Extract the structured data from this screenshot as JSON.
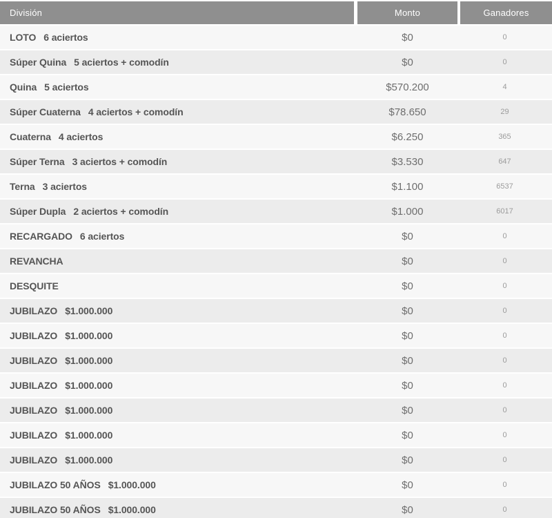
{
  "table": {
    "columns": [
      "División",
      "Monto",
      "Ganadores"
    ],
    "rows": [
      {
        "division": "LOTO",
        "detail": "6 aciertos",
        "monto": "$0",
        "ganadores": "0"
      },
      {
        "division": "Súper Quina",
        "detail": "5 aciertos + comodín",
        "monto": "$0",
        "ganadores": "0"
      },
      {
        "division": "Quina",
        "detail": "5 aciertos",
        "monto": "$570.200",
        "ganadores": "4"
      },
      {
        "division": "Súper Cuaterna",
        "detail": "4 aciertos + comodín",
        "monto": "$78.650",
        "ganadores": "29"
      },
      {
        "division": "Cuaterna",
        "detail": "4 aciertos",
        "monto": "$6.250",
        "ganadores": "365"
      },
      {
        "division": "Súper Terna",
        "detail": "3 aciertos + comodín",
        "monto": "$3.530",
        "ganadores": "647"
      },
      {
        "division": "Terna",
        "detail": "3 aciertos",
        "monto": "$1.100",
        "ganadores": "6537"
      },
      {
        "division": "Súper Dupla",
        "detail": "2 aciertos + comodín",
        "monto": "$1.000",
        "ganadores": "6017"
      },
      {
        "division": "RECARGADO",
        "detail": "6 aciertos",
        "monto": "$0",
        "ganadores": "0"
      },
      {
        "division": "REVANCHA",
        "detail": "",
        "monto": "$0",
        "ganadores": "0"
      },
      {
        "division": "DESQUITE",
        "detail": "",
        "monto": "$0",
        "ganadores": "0"
      },
      {
        "division": "JUBILAZO",
        "detail": "$1.000.000",
        "monto": "$0",
        "ganadores": "0"
      },
      {
        "division": "JUBILAZO",
        "detail": "$1.000.000",
        "monto": "$0",
        "ganadores": "0"
      },
      {
        "division": "JUBILAZO",
        "detail": "$1.000.000",
        "monto": "$0",
        "ganadores": "0"
      },
      {
        "division": "JUBILAZO",
        "detail": "$1.000.000",
        "monto": "$0",
        "ganadores": "0"
      },
      {
        "division": "JUBILAZO",
        "detail": "$1.000.000",
        "monto": "$0",
        "ganadores": "0"
      },
      {
        "division": "JUBILAZO",
        "detail": "$1.000.000",
        "monto": "$0",
        "ganadores": "0"
      },
      {
        "division": "JUBILAZO",
        "detail": "$1.000.000",
        "monto": "$0",
        "ganadores": "0"
      },
      {
        "division": "JUBILAZO 50 AÑOS",
        "detail": "$1.000.000",
        "monto": "$0",
        "ganadores": "0"
      },
      {
        "division": "JUBILAZO 50 AÑOS",
        "detail": "$1.000.000",
        "monto": "$0",
        "ganadores": "0"
      }
    ]
  },
  "colors": {
    "header_bg": "#8f8f8f",
    "header_text": "#ffffff",
    "row_light": "#f7f7f7",
    "row_dark": "#ececec",
    "division_text": "#555555",
    "monto_text": "#6e6e6e",
    "ganadores_text": "#9b9b9b"
  }
}
